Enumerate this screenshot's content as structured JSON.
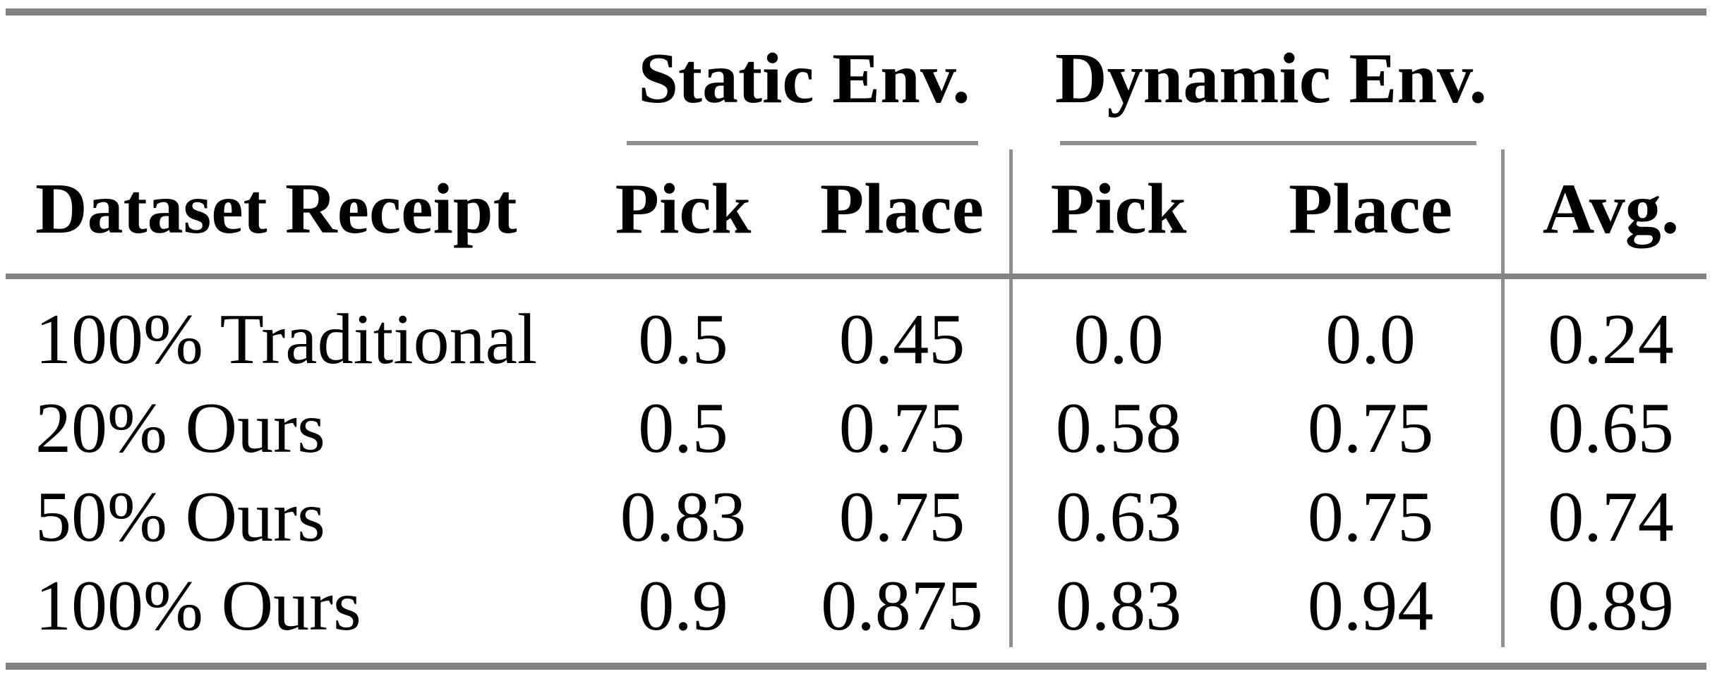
{
  "table": {
    "groups": [
      {
        "label": "Static Env."
      },
      {
        "label": "Dynamic Env."
      }
    ],
    "columns": [
      "Dataset Receipt",
      "Pick",
      "Place",
      "Pick",
      "Place",
      "Avg."
    ],
    "rows": [
      {
        "cells": [
          "100% Traditional",
          "0.5",
          "0.45",
          "0.0",
          "0.0",
          "0.24"
        ]
      },
      {
        "cells": [
          "20% Ours",
          "0.5",
          "0.75",
          "0.58",
          "0.75",
          "0.65"
        ]
      },
      {
        "cells": [
          "50% Ours",
          "0.83",
          "0.75",
          "0.63",
          "0.75",
          "0.74"
        ]
      },
      {
        "cells": [
          "100% Ours",
          "0.9",
          "0.875",
          "0.83",
          "0.94",
          "0.89"
        ]
      }
    ]
  },
  "theme": {
    "background": "#ffffff",
    "text_color": "#000000",
    "thick_rule_color": "#828282",
    "thin_rule_color": "#909090"
  }
}
